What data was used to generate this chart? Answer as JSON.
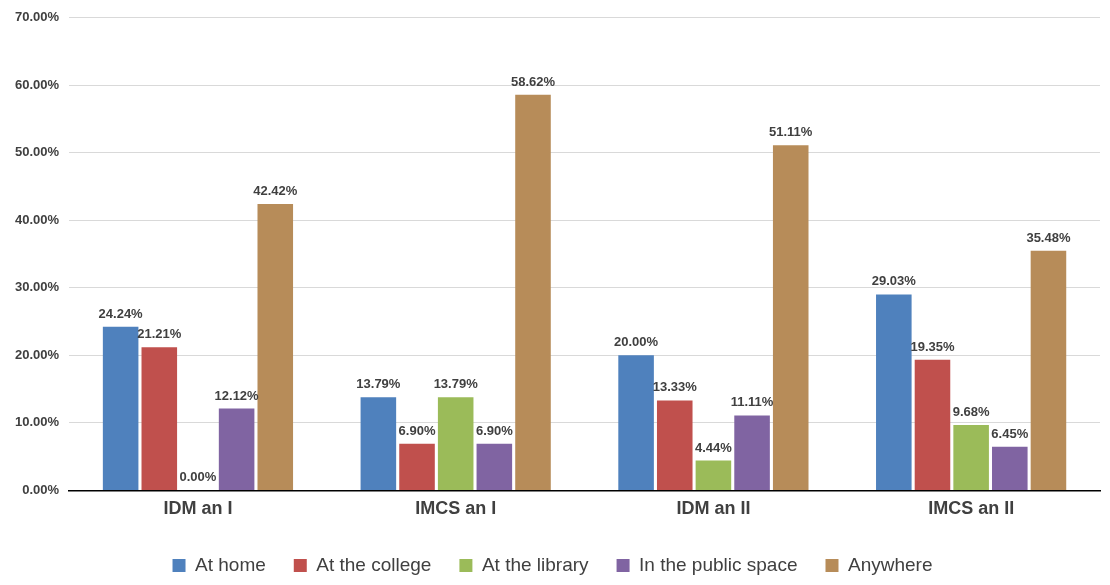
{
  "chart_data": {
    "type": "bar",
    "categories": [
      "IDM an I",
      "IMCS an I",
      "IDM an II",
      "IMCS an II"
    ],
    "series": [
      {
        "name": "At home",
        "color": "#4f81bd",
        "values": [
          24.24,
          13.79,
          20.0,
          29.03
        ]
      },
      {
        "name": "At the college",
        "color": "#c0504d",
        "values": [
          21.21,
          6.9,
          13.33,
          19.35
        ]
      },
      {
        "name": "At the library",
        "color": "#9bbb59",
        "values": [
          0.0,
          13.79,
          4.44,
          9.68
        ]
      },
      {
        "name": "In the public space",
        "color": "#8064a2",
        "values": [
          12.12,
          6.9,
          11.11,
          6.45
        ]
      },
      {
        "name": "Anywhere",
        "color": "#b78c59",
        "values": [
          42.42,
          58.62,
          51.11,
          35.48
        ]
      }
    ],
    "ylim": [
      0,
      70
    ],
    "yticks": [
      {
        "value": 0,
        "label": "0.00%"
      },
      {
        "value": 10,
        "label": "10.00%"
      },
      {
        "value": 20,
        "label": "20.00%"
      },
      {
        "value": 30,
        "label": "30.00%"
      },
      {
        "value": 40,
        "label": "40.00%"
      },
      {
        "value": 50,
        "label": "50.00%"
      },
      {
        "value": 60,
        "label": "60.00%"
      },
      {
        "value": 70,
        "label": "70.00%"
      }
    ],
    "value_labels": [
      [
        "24.24%",
        "13.79%",
        "20.00%",
        "29.03%"
      ],
      [
        "21.21%",
        "6.90%",
        "13.33%",
        "19.35%"
      ],
      [
        "0.00%",
        "13.79%",
        "4.44%",
        "9.68%"
      ],
      [
        "12.12%",
        "6.90%",
        "11.11%",
        "6.45%"
      ],
      [
        "42.42%",
        "58.62%",
        "51.11%",
        "35.48%"
      ]
    ],
    "grid": "y",
    "legend": "bottom"
  }
}
